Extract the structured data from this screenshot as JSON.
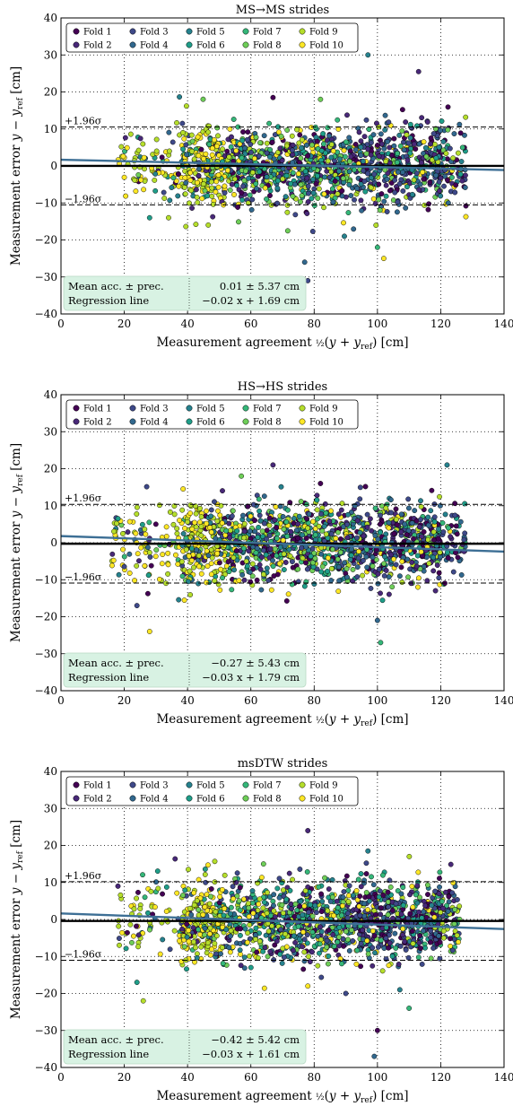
{
  "chart_data": [
    {
      "type": "scatter",
      "title": "MS→MS strides",
      "xlabel_prefix": "Measurement agreement",
      "ylabel_prefix": "Measurement error",
      "xlim": [
        0,
        140
      ],
      "ylim": [
        -40,
        40
      ],
      "xticks": [
        0,
        20,
        40,
        60,
        80,
        100,
        120,
        140
      ],
      "yticks": [
        -40,
        -30,
        -20,
        -10,
        0,
        10,
        20,
        30,
        40
      ],
      "grid": true,
      "legend": {
        "placement": "top-left",
        "columns": 5,
        "entries": [
          "Fold 1",
          "Fold 2",
          "Fold 3",
          "Fold 4",
          "Fold 5",
          "Fold 6",
          "Fold 7",
          "Fold 8",
          "Fold 9",
          "Fold 10"
        ],
        "colors": [
          "#440154",
          "#482878",
          "#3e4989",
          "#31688e",
          "#26828e",
          "#1f9e89",
          "#35b779",
          "#6ece58",
          "#b5de2b",
          "#fde725"
        ]
      },
      "mean": 0.01,
      "loa_upper": 10.53,
      "loa_lower": -10.51,
      "loa_upper_label": "+1.96σ",
      "loa_lower_label": "−1.96σ",
      "regression": {
        "slope": -0.02,
        "intercept": 1.69
      },
      "stats_rows": [
        {
          "label": "Mean acc. ± prec.",
          "value": "0.01 ± 5.37 cm"
        },
        {
          "label": "Regression line",
          "value": "−0.02 x + 1.69 cm"
        }
      ],
      "x_range": [
        18,
        128
      ],
      "sd": 5.4,
      "n_points": 1500,
      "seed": 11,
      "outliers": [
        [
          113,
          25.5
        ],
        [
          97,
          30
        ],
        [
          82,
          18
        ],
        [
          67,
          18.5
        ],
        [
          77,
          -26
        ],
        [
          100,
          -22
        ],
        [
          102,
          -25
        ],
        [
          78,
          -31
        ],
        [
          28,
          -14
        ],
        [
          34,
          -14
        ]
      ]
    },
    {
      "type": "scatter",
      "title": "HS→HS strides",
      "xlabel_prefix": "Measurement agreement",
      "ylabel_prefix": "Measurement error",
      "xlim": [
        0,
        140
      ],
      "ylim": [
        -40,
        40
      ],
      "xticks": [
        0,
        20,
        40,
        60,
        80,
        100,
        120,
        140
      ],
      "yticks": [
        -40,
        -30,
        -20,
        -10,
        0,
        10,
        20,
        30,
        40
      ],
      "grid": true,
      "legend": {
        "placement": "top-left",
        "columns": 5,
        "entries": [
          "Fold 1",
          "Fold 2",
          "Fold 3",
          "Fold 4",
          "Fold 5",
          "Fold 6",
          "Fold 7",
          "Fold 8",
          "Fold 9",
          "Fold 10"
        ],
        "colors": [
          "#440154",
          "#482878",
          "#3e4989",
          "#31688e",
          "#26828e",
          "#1f9e89",
          "#35b779",
          "#6ece58",
          "#b5de2b",
          "#fde725"
        ]
      },
      "mean": -0.27,
      "loa_upper": 10.37,
      "loa_lower": -10.91,
      "loa_upper_label": "+1.96σ",
      "loa_lower_label": "−1.96σ",
      "regression": {
        "slope": -0.03,
        "intercept": 1.79
      },
      "stats_rows": [
        {
          "label": "Mean acc. ± prec.",
          "value": "−0.27 ± 5.43 cm"
        },
        {
          "label": "Regression line",
          "value": "−0.03 x + 1.79 cm"
        }
      ],
      "x_range": [
        16,
        128
      ],
      "sd": 5.4,
      "n_points": 1500,
      "seed": 23,
      "outliers": [
        [
          67,
          21
        ],
        [
          122,
          21
        ],
        [
          57,
          18
        ],
        [
          82,
          16
        ],
        [
          100,
          -21
        ],
        [
          101,
          -27
        ],
        [
          28,
          -24
        ],
        [
          24,
          -17
        ],
        [
          18,
          6.5
        ]
      ]
    },
    {
      "type": "scatter",
      "title": "msDTW strides",
      "xlabel_prefix": "Measurement agreement",
      "ylabel_prefix": "Measurement error",
      "xlim": [
        0,
        140
      ],
      "ylim": [
        -40,
        40
      ],
      "xticks": [
        0,
        20,
        40,
        60,
        80,
        100,
        120,
        140
      ],
      "yticks": [
        -40,
        -30,
        -20,
        -10,
        0,
        10,
        20,
        30,
        40
      ],
      "grid": true,
      "legend": {
        "placement": "top-left",
        "columns": 5,
        "entries": [
          "Fold 1",
          "Fold 2",
          "Fold 3",
          "Fold 4",
          "Fold 5",
          "Fold 6",
          "Fold 7",
          "Fold 8",
          "Fold 9",
          "Fold 10"
        ],
        "colors": [
          "#440154",
          "#482878",
          "#3e4989",
          "#31688e",
          "#26828e",
          "#1f9e89",
          "#35b779",
          "#6ece58",
          "#b5de2b",
          "#fde725"
        ]
      },
      "mean": -0.42,
      "loa_upper": 10.2,
      "loa_lower": -11.04,
      "loa_upper_label": "+1.96σ",
      "loa_lower_label": "−1.96σ",
      "regression": {
        "slope": -0.03,
        "intercept": 1.61
      },
      "stats_rows": [
        {
          "label": "Mean acc. ± prec.",
          "value": "−0.42 ± 5.42 cm"
        },
        {
          "label": "Regression line",
          "value": "−0.03 x + 1.61 cm"
        }
      ],
      "x_range": [
        18,
        126
      ],
      "sd": 5.4,
      "n_points": 1500,
      "seed": 37,
      "outliers": [
        [
          78,
          24
        ],
        [
          97,
          18.5
        ],
        [
          64,
          15
        ],
        [
          100,
          -30
        ],
        [
          99,
          -37
        ],
        [
          110,
          -24
        ],
        [
          78,
          -18
        ],
        [
          90,
          -20
        ],
        [
          24,
          -17
        ],
        [
          26,
          -22
        ],
        [
          18,
          9
        ]
      ]
    }
  ]
}
